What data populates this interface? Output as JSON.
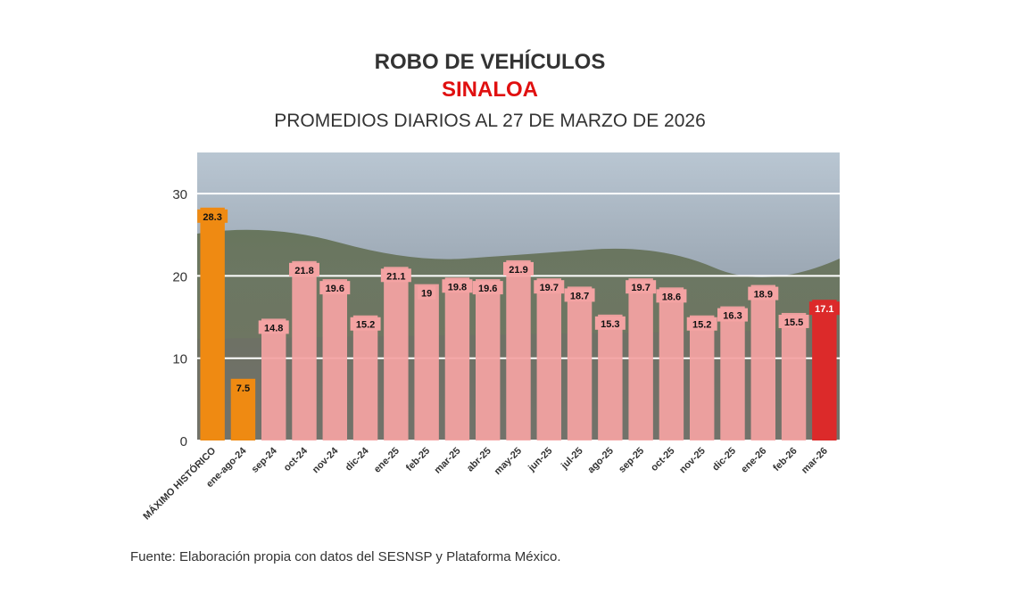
{
  "header": {
    "title": "ROBO DE VEHÍCULOS",
    "subtitle": "SINALOA",
    "period": "PROMEDIOS DIARIOS AL 27 DE MARZO DE 2026"
  },
  "footer": {
    "source": "Fuente: Elaboración propia con datos del SESNSP y Plataforma México."
  },
  "colors": {
    "historic": "#ef8a12",
    "regular": "#f4a3a3",
    "current": "#dc2a2a"
  },
  "chart_data": {
    "type": "bar",
    "title": "ROBO DE VEHÍCULOS",
    "categories": [
      "MÁXIMO HISTÓRICO",
      "ene-ago-24",
      "sep-24",
      "oct-24",
      "nov-24",
      "dic-24",
      "ene-25",
      "feb-25",
      "mar-25",
      "abr-25",
      "may-25",
      "jun-25",
      "jul-25",
      "ago-25",
      "sep-25",
      "oct-25",
      "nov-25",
      "dic-25",
      "ene-26",
      "feb-26",
      "mar-26"
    ],
    "values": [
      28.3,
      7.5,
      14.8,
      21.8,
      19.6,
      15.2,
      21.1,
      19,
      19.8,
      19.6,
      21.9,
      19.7,
      18.7,
      15.3,
      19.7,
      18.6,
      15.2,
      16.3,
      18.9,
      15.5,
      17.1
    ],
    "value_labels": [
      "28.3",
      "7.5",
      "14.8",
      "21.8",
      "19.6",
      "15.2",
      "21.1",
      "19",
      "19.8",
      "19.6",
      "21.9",
      "19.7",
      "18.7",
      "15.3",
      "19.7",
      "18.6",
      "15.2",
      "16.3",
      "18.9",
      "15.5",
      "17.1"
    ],
    "bar_kind": [
      "historic",
      "historic",
      "regular",
      "regular",
      "regular",
      "regular",
      "regular",
      "regular",
      "regular",
      "regular",
      "regular",
      "regular",
      "regular",
      "regular",
      "regular",
      "regular",
      "regular",
      "regular",
      "regular",
      "regular",
      "current"
    ],
    "yticks": [
      0,
      10,
      20,
      30
    ],
    "ylim": [
      0,
      35
    ],
    "xlabel": "",
    "ylabel": "",
    "grid": true
  }
}
